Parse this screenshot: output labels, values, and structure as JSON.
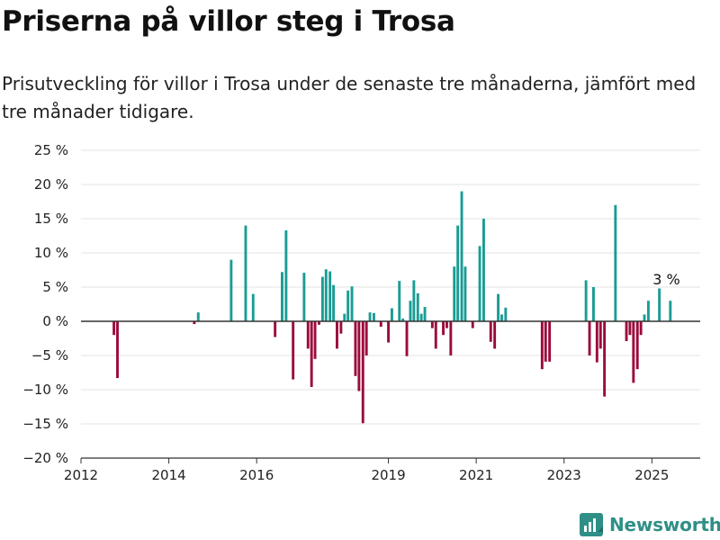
{
  "chart_data": {
    "type": "bar",
    "title": "Priserna på villor steg i Trosa",
    "subtitle": "Prisutveckling för villor i Trosa under de senaste tre månaderna, jämfört med tre månader tidigare.",
    "xlim": [
      2012.0,
      2026.1
    ],
    "ylim": [
      -20,
      25
    ],
    "yticks": [
      25,
      20,
      15,
      10,
      5,
      0,
      -5,
      -10,
      -15,
      -20
    ],
    "ytick_labels": [
      "25 %",
      "20 %",
      "15 %",
      "10 %",
      "5 %",
      "0 %",
      "−5 %",
      "−10 %",
      "−15 %",
      "−20 %"
    ],
    "xticks": [
      2012,
      2014,
      2016,
      2019,
      2021,
      2023,
      2025
    ],
    "xtick_labels": [
      "2012",
      "2014",
      "2016",
      "2019",
      "2021",
      "2023",
      "2025"
    ],
    "grid": true,
    "colors": {
      "positive": "#1a9c94",
      "negative": "#9b0a3c",
      "zero_line": "#333333",
      "grid": "#e3e3e3"
    },
    "annotation": {
      "text": "3 %",
      "x": 2025.33,
      "y": 3.0
    },
    "points": [
      {
        "x": 2012.75,
        "y": -2.0
      },
      {
        "x": 2012.83,
        "y": -8.3
      },
      {
        "x": 2014.58,
        "y": -0.4
      },
      {
        "x": 2014.67,
        "y": 1.3
      },
      {
        "x": 2015.42,
        "y": 9.0
      },
      {
        "x": 2015.75,
        "y": 14.0
      },
      {
        "x": 2015.92,
        "y": 4.0
      },
      {
        "x": 2016.42,
        "y": -2.3
      },
      {
        "x": 2016.58,
        "y": 7.2
      },
      {
        "x": 2016.67,
        "y": 13.3
      },
      {
        "x": 2016.83,
        "y": -8.5
      },
      {
        "x": 2017.08,
        "y": 7.1
      },
      {
        "x": 2017.17,
        "y": -4.0
      },
      {
        "x": 2017.25,
        "y": -9.6
      },
      {
        "x": 2017.33,
        "y": -5.5
      },
      {
        "x": 2017.42,
        "y": -0.5
      },
      {
        "x": 2017.5,
        "y": 6.5
      },
      {
        "x": 2017.58,
        "y": 7.6
      },
      {
        "x": 2017.67,
        "y": 7.3
      },
      {
        "x": 2017.75,
        "y": 5.3
      },
      {
        "x": 2017.83,
        "y": -4.0
      },
      {
        "x": 2017.92,
        "y": -1.8
      },
      {
        "x": 2018.0,
        "y": 1.1
      },
      {
        "x": 2018.08,
        "y": 4.5
      },
      {
        "x": 2018.17,
        "y": 5.1
      },
      {
        "x": 2018.25,
        "y": -8.0
      },
      {
        "x": 2018.33,
        "y": -10.2
      },
      {
        "x": 2018.42,
        "y": -14.9
      },
      {
        "x": 2018.5,
        "y": -5.0
      },
      {
        "x": 2018.58,
        "y": 1.3
      },
      {
        "x": 2018.67,
        "y": 1.2
      },
      {
        "x": 2018.83,
        "y": -0.8
      },
      {
        "x": 2019.0,
        "y": -3.1
      },
      {
        "x": 2019.08,
        "y": 1.9
      },
      {
        "x": 2019.25,
        "y": 5.9
      },
      {
        "x": 2019.33,
        "y": 0.4
      },
      {
        "x": 2019.42,
        "y": -5.1
      },
      {
        "x": 2019.5,
        "y": 3.0
      },
      {
        "x": 2019.58,
        "y": 6.0
      },
      {
        "x": 2019.67,
        "y": 4.1
      },
      {
        "x": 2019.75,
        "y": 1.1
      },
      {
        "x": 2019.83,
        "y": 2.1
      },
      {
        "x": 2020.0,
        "y": -1.0
      },
      {
        "x": 2020.08,
        "y": -4.0
      },
      {
        "x": 2020.25,
        "y": -2.0
      },
      {
        "x": 2020.33,
        "y": -1.0
      },
      {
        "x": 2020.42,
        "y": -5.0
      },
      {
        "x": 2020.5,
        "y": 8.0
      },
      {
        "x": 2020.58,
        "y": 14.0
      },
      {
        "x": 2020.67,
        "y": 19.0
      },
      {
        "x": 2020.75,
        "y": 8.0
      },
      {
        "x": 2020.92,
        "y": -1.0
      },
      {
        "x": 2021.08,
        "y": 11.0
      },
      {
        "x": 2021.17,
        "y": 15.0
      },
      {
        "x": 2021.33,
        "y": -3.0
      },
      {
        "x": 2021.42,
        "y": -4.0
      },
      {
        "x": 2021.5,
        "y": 4.0
      },
      {
        "x": 2021.58,
        "y": 1.0
      },
      {
        "x": 2021.67,
        "y": 2.0
      },
      {
        "x": 2022.5,
        "y": -7.0
      },
      {
        "x": 2022.58,
        "y": -5.9
      },
      {
        "x": 2022.67,
        "y": -5.9
      },
      {
        "x": 2023.5,
        "y": 6.0
      },
      {
        "x": 2023.58,
        "y": -5.0
      },
      {
        "x": 2023.67,
        "y": 5.0
      },
      {
        "x": 2023.75,
        "y": -6.0
      },
      {
        "x": 2023.83,
        "y": -4.0
      },
      {
        "x": 2023.92,
        "y": -11.0
      },
      {
        "x": 2024.17,
        "y": 17.0
      },
      {
        "x": 2024.42,
        "y": -2.9
      },
      {
        "x": 2024.5,
        "y": -2.0
      },
      {
        "x": 2024.58,
        "y": -9.0
      },
      {
        "x": 2024.67,
        "y": -7.0
      },
      {
        "x": 2024.75,
        "y": -2.0
      },
      {
        "x": 2024.83,
        "y": 1.0
      },
      {
        "x": 2024.92,
        "y": 3.0
      },
      {
        "x": 2025.17,
        "y": 4.8
      },
      {
        "x": 2025.42,
        "y": 3.0
      }
    ]
  },
  "brand": {
    "name": "Newsworthy",
    "icon": "newsworthy-logo-icon",
    "color": "#2f8f86"
  }
}
